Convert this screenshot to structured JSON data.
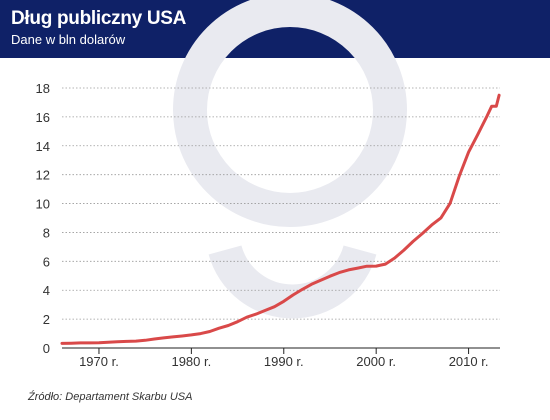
{
  "header": {
    "title": "Dług publiczny USA",
    "subtitle": "Dane w  bln dolarów",
    "background_color": "#0f2167"
  },
  "source": "Źródło: Departament Skarbu USA",
  "colors": {
    "line": "#d94949",
    "grid": "#9a9a9a",
    "axis": "#222222",
    "watermark": "#e9eaf0"
  },
  "chart_data": {
    "type": "line",
    "title": "Dług publiczny USA",
    "subtitle": "Dane w  bln dolarów",
    "xlabel": "",
    "ylabel": "",
    "xlim": [
      1966,
      2013.4
    ],
    "ylim": [
      0,
      18
    ],
    "yticks": [
      0,
      2,
      4,
      6,
      8,
      10,
      12,
      14,
      16,
      18
    ],
    "xticks": [
      {
        "value": 1970,
        "label": "1970 r."
      },
      {
        "value": 1980,
        "label": "1980 r."
      },
      {
        "value": 1990,
        "label": "1990 r."
      },
      {
        "value": 2000,
        "label": "2000 r."
      },
      {
        "value": 2010,
        "label": "2010 r."
      }
    ],
    "grid": "horizontal",
    "series": [
      {
        "x": [
          1966,
          1967,
          1968,
          1969,
          1970,
          1971,
          1972,
          1973,
          1974,
          1975,
          1976,
          1977,
          1978,
          1979,
          1980,
          1981,
          1982,
          1983,
          1984,
          1985,
          1986,
          1987,
          1988,
          1989,
          1990,
          1991,
          1992,
          1993,
          1994,
          1995,
          1996,
          1997,
          1998,
          1999,
          2000,
          2001,
          2002,
          2003,
          2004,
          2005,
          2006,
          2007,
          2008,
          2009,
          2010,
          2011,
          2012,
          2012.5,
          2013,
          2013.3
        ],
        "y": [
          0.32,
          0.33,
          0.35,
          0.35,
          0.37,
          0.4,
          0.43,
          0.46,
          0.48,
          0.53,
          0.62,
          0.7,
          0.77,
          0.83,
          0.91,
          1.0,
          1.14,
          1.37,
          1.56,
          1.82,
          2.13,
          2.35,
          2.6,
          2.86,
          3.23,
          3.67,
          4.06,
          4.41,
          4.69,
          4.97,
          5.22,
          5.41,
          5.53,
          5.66,
          5.67,
          5.81,
          6.23,
          6.78,
          7.38,
          7.93,
          8.51,
          9.01,
          10.02,
          11.91,
          13.56,
          14.79,
          16.07,
          16.74,
          16.74,
          17.5
        ]
      }
    ]
  }
}
